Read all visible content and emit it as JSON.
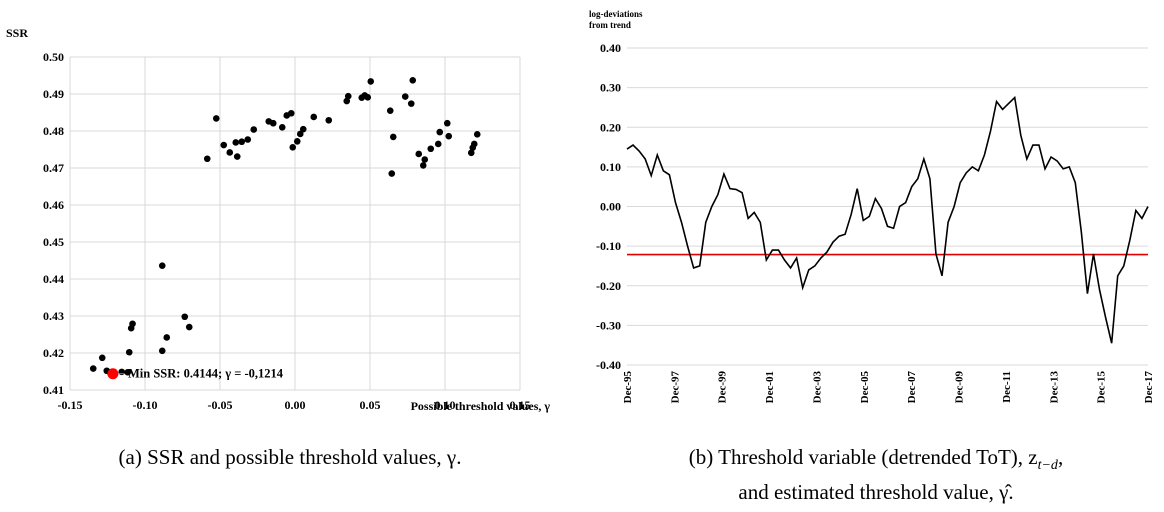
{
  "chart_data": [
    {
      "type": "scatter",
      "title": "",
      "ylabel": "SSR",
      "xlabel": "Possible threshold values, γ",
      "xlim": [
        -0.15,
        0.15
      ],
      "ylim": [
        0.41,
        0.5
      ],
      "xticks": [
        -0.15,
        -0.1,
        -0.05,
        0.0,
        0.05,
        0.1,
        0.15
      ],
      "xtick_labels": [
        "-0.15",
        "-0.10",
        "-0.05",
        "0.00",
        "0.05",
        "0.10",
        "0.15"
      ],
      "yticks": [
        0.41,
        0.42,
        0.43,
        0.44,
        0.45,
        0.46,
        0.47,
        0.48,
        0.49,
        0.5
      ],
      "ytick_labels": [
        "0.41",
        "0.42",
        "0.43",
        "0.44",
        "0.45",
        "0.46",
        "0.47",
        "0.48",
        "0.49",
        "0.50"
      ],
      "grid": true,
      "point_color": "#000000",
      "highlight_color": "#ff0000",
      "points": [
        [
          -0.1345,
          0.4158
        ],
        [
          -0.1285,
          0.4187
        ],
        [
          -0.1255,
          0.4152
        ],
        [
          -0.1235,
          0.4148
        ],
        [
          -0.1205,
          0.4148
        ],
        [
          -0.1155,
          0.4149
        ],
        [
          -0.1115,
          0.4148
        ],
        [
          -0.1105,
          0.4202
        ],
        [
          -0.1092,
          0.4267
        ],
        [
          -0.1083,
          0.4279
        ],
        [
          -0.0885,
          0.4436
        ],
        [
          -0.0885,
          0.4206
        ],
        [
          -0.0855,
          0.4242
        ],
        [
          -0.0735,
          0.4298
        ],
        [
          -0.0705,
          0.427
        ],
        [
          -0.0585,
          0.4725
        ],
        [
          -0.0525,
          0.4834
        ],
        [
          -0.0475,
          0.4762
        ],
        [
          -0.0435,
          0.4742
        ],
        [
          -0.0395,
          0.4769
        ],
        [
          -0.0385,
          0.4731
        ],
        [
          -0.0355,
          0.4771
        ],
        [
          -0.0315,
          0.4777
        ],
        [
          -0.0275,
          0.4804
        ],
        [
          -0.0175,
          0.4826
        ],
        [
          -0.0145,
          0.4821
        ],
        [
          -0.0085,
          0.481
        ],
        [
          -0.0055,
          0.4842
        ],
        [
          -0.0025,
          0.4848
        ],
        [
          -0.0015,
          0.4756
        ],
        [
          0.0015,
          0.4772
        ],
        [
          0.0035,
          0.4792
        ],
        [
          0.0055,
          0.4805
        ],
        [
          0.0125,
          0.4838
        ],
        [
          0.0225,
          0.4829
        ],
        [
          0.0345,
          0.4881
        ],
        [
          0.0355,
          0.4894
        ],
        [
          0.0445,
          0.489
        ],
        [
          0.0465,
          0.4896
        ],
        [
          0.0485,
          0.4891
        ],
        [
          0.0505,
          0.4934
        ],
        [
          0.0635,
          0.4855
        ],
        [
          0.0645,
          0.4685
        ],
        [
          0.0655,
          0.4784
        ],
        [
          0.0735,
          0.4893
        ],
        [
          0.0775,
          0.4874
        ],
        [
          0.0785,
          0.4937
        ],
        [
          0.0825,
          0.4738
        ],
        [
          0.0855,
          0.4707
        ],
        [
          0.0865,
          0.4723
        ],
        [
          0.0905,
          0.4752
        ],
        [
          0.0955,
          0.4765
        ],
        [
          0.0965,
          0.4797
        ],
        [
          0.1015,
          0.4821
        ],
        [
          0.1025,
          0.4786
        ],
        [
          0.1175,
          0.4741
        ],
        [
          0.1185,
          0.4755
        ],
        [
          0.1195,
          0.4765
        ],
        [
          0.1215,
          0.4791
        ]
      ],
      "min_point": {
        "x": -0.1214,
        "y": 0.4144
      },
      "annotation": "Min SSR: 0.4144; γ = -0,1214"
    },
    {
      "type": "line",
      "title": "",
      "ylabel": "log-deviations from trend",
      "ylabel_lines": [
        "log-deviations",
        "from trend"
      ],
      "xlabel": "",
      "ylim": [
        -0.4,
        0.4
      ],
      "yticks": [
        -0.4,
        -0.3,
        -0.2,
        -0.1,
        0.0,
        0.1,
        0.2,
        0.3,
        0.4
      ],
      "ytick_labels": [
        "-0.40",
        "-0.30",
        "-0.20",
        "-0.10",
        "0.00",
        "0.10",
        "0.20",
        "0.30",
        "0.40"
      ],
      "grid": true,
      "xlim": [
        "Dec-95",
        "Dec-17"
      ],
      "xtick_labels": [
        "Dec-95",
        "Dec-97",
        "Dec-99",
        "Dec-01",
        "Dec-03",
        "Dec-05",
        "Dec-07",
        "Dec-09",
        "Dec-11",
        "Dec-13",
        "Dec-15",
        "Dec-17"
      ],
      "series": [
        {
          "line_color": "#000000",
          "start": "Dec-95",
          "step": "quarter",
          "values": [
            0.145,
            0.155,
            0.14,
            0.12,
            0.078,
            0.13,
            0.09,
            0.08,
            0.01,
            -0.04,
            -0.1,
            -0.155,
            -0.15,
            -0.04,
            0.0,
            0.03,
            0.082,
            0.045,
            0.043,
            0.035,
            -0.03,
            -0.015,
            -0.04,
            -0.135,
            -0.11,
            -0.11,
            -0.135,
            -0.155,
            -0.13,
            -0.205,
            -0.16,
            -0.15,
            -0.13,
            -0.115,
            -0.09,
            -0.075,
            -0.07,
            -0.02,
            0.045,
            -0.035,
            -0.025,
            0.02,
            -0.005,
            -0.05,
            -0.055,
            0.0,
            0.01,
            0.05,
            0.07,
            0.12,
            0.07,
            -0.12,
            -0.175,
            -0.04,
            0.0,
            0.06,
            0.085,
            0.1,
            0.09,
            0.13,
            0.19,
            0.265,
            0.245,
            0.26,
            0.275,
            0.18,
            0.12,
            0.155,
            0.155,
            0.095,
            0.125,
            0.115,
            0.095,
            0.1,
            0.06,
            -0.065,
            -0.22,
            -0.12,
            -0.21,
            -0.28,
            -0.345,
            -0.175,
            -0.15,
            -0.085,
            -0.01,
            -0.03,
            0.0
          ]
        }
      ],
      "threshold": {
        "value": -0.1214,
        "color": "#e00000"
      }
    }
  ],
  "captions": {
    "a": "(a) SSR and possible threshold values, γ.",
    "b_line1": "(b) Threshold variable (detrended ToT), z",
    "b_sub": "t−d",
    "b_line1_end": ",",
    "b_line2": "and estimated threshold value, γ̂."
  }
}
